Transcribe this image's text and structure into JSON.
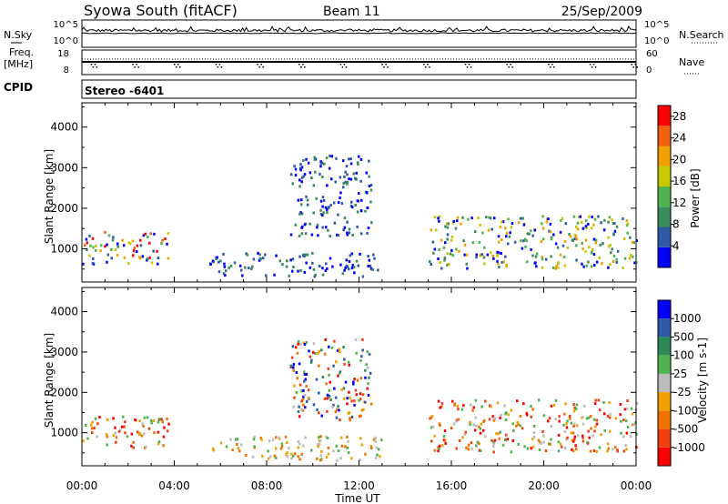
{
  "header": {
    "station": "Syowa South (fitACF)",
    "beam": "Beam 11",
    "date": "25/Sep/2009"
  },
  "noise_panel": {
    "left_label": "N.Sky",
    "right_label": "N.Search",
    "left_ticks": [
      "10^5",
      "10^0"
    ],
    "right_ticks": [
      "10^5",
      "10^0"
    ]
  },
  "freq_panel": {
    "left_label_line1": "Freq.",
    "left_label_line2": "[MHz]",
    "left_ticks": [
      "18",
      "8"
    ],
    "right_label": "Nave",
    "right_ticks": [
      "60",
      "0"
    ]
  },
  "cpid": {
    "label": "CPID",
    "value": "Stereo -6401"
  },
  "x_axis": {
    "label": "Time UT",
    "tick_labels": [
      "00:00",
      "04:00",
      "08:00",
      "12:00",
      "16:00",
      "20:00",
      "00:00"
    ]
  },
  "colors": {
    "power_scale": [
      "#0000ff",
      "#2e5aa6",
      "#3b8b5b",
      "#4fb34f",
      "#c8c800",
      "#f0a000",
      "#f06010",
      "#ff0000"
    ],
    "velocity_scale": [
      "#ff0000",
      "#f04010",
      "#f07000",
      "#f0a000",
      "#bbbbbb",
      "#4fb34f",
      "#2e8b57",
      "#2e5aa6",
      "#0000ff"
    ]
  },
  "chart_data": [
    {
      "type": "heatmap",
      "title": "Power",
      "ylabel": "Slant Range [km]",
      "xlabel": "",
      "x_range_hours": [
        0,
        24
      ],
      "ylim_km": [
        180,
        4600
      ],
      "y_ticks": [
        1000,
        2000,
        3000,
        4000
      ],
      "colorbar": {
        "label": "Power [dB]",
        "ticks": [
          4,
          8,
          12,
          16,
          20,
          24,
          28
        ],
        "range": [
          0,
          30
        ]
      },
      "echo_regions": [
        {
          "t0": 0.0,
          "t1": 3.8,
          "r0": 600,
          "r1": 1400,
          "level": "mixed-high"
        },
        {
          "t0": 5.5,
          "t1": 13.0,
          "r0": 300,
          "r1": 900,
          "level": "low"
        },
        {
          "t0": 9.0,
          "t1": 12.5,
          "r0": 1300,
          "r1": 3300,
          "level": "low"
        },
        {
          "t0": 15.0,
          "t1": 24.0,
          "r0": 500,
          "r1": 1800,
          "level": "mixed"
        }
      ]
    },
    {
      "type": "heatmap",
      "title": "Velocity",
      "ylabel": "Slant Range [km]",
      "xlabel": "Time UT",
      "x_range_hours": [
        0,
        24
      ],
      "ylim_km": [
        180,
        4600
      ],
      "y_ticks": [
        1000,
        2000,
        3000,
        4000
      ],
      "colorbar": {
        "label": "Velocity [m s-1]",
        "ticks": [
          1000,
          500,
          100,
          25,
          -25,
          -100,
          -500,
          -1000
        ]
      },
      "echo_regions": [
        {
          "t0": 0.0,
          "t1": 3.8,
          "r0": 600,
          "r1": 1400,
          "level": "negative"
        },
        {
          "t0": 5.5,
          "t1": 13.0,
          "r0": 300,
          "r1": 900,
          "level": "weak-negative"
        },
        {
          "t0": 9.0,
          "t1": 12.5,
          "r0": 1300,
          "r1": 3300,
          "level": "mixed"
        },
        {
          "t0": 15.0,
          "t1": 24.0,
          "r0": 500,
          "r1": 1800,
          "level": "negative"
        }
      ]
    }
  ]
}
